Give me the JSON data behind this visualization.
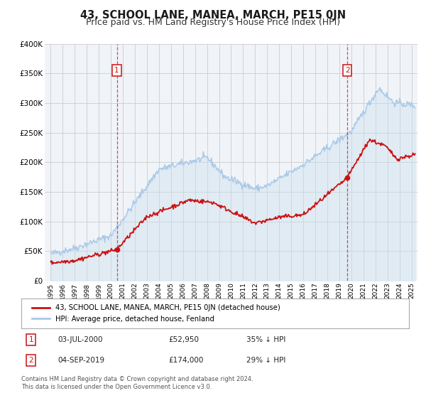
{
  "title": "43, SCHOOL LANE, MANEA, MARCH, PE15 0JN",
  "subtitle": "Price paid vs. HM Land Registry's House Price Index (HPI)",
  "ylim": [
    0,
    400000
  ],
  "yticks": [
    0,
    50000,
    100000,
    150000,
    200000,
    250000,
    300000,
    350000,
    400000
  ],
  "ytick_labels": [
    "£0",
    "£50K",
    "£100K",
    "£150K",
    "£200K",
    "£250K",
    "£300K",
    "£350K",
    "£400K"
  ],
  "xlim_start": 1994.5,
  "xlim_end": 2025.5,
  "background_color": "#ffffff",
  "plot_bg_color": "#f0f4f8",
  "grid_color": "#cccccc",
  "hpi_color": "#a8c8e8",
  "hpi_fill_color": "#c8dff0",
  "price_color": "#cc1111",
  "marker1_date": 2000.5,
  "marker1_price": 52950,
  "marker2_date": 2019.67,
  "marker2_price": 174000,
  "vline_color": "#cc3333",
  "box_color": "#cc1111",
  "legend_entry1": "43, SCHOOL LANE, MANEA, MARCH, PE15 0JN (detached house)",
  "legend_entry2": "HPI: Average price, detached house, Fenland",
  "ann1_date": "03-JUL-2000",
  "ann1_price": "£52,950",
  "ann1_note": "35% ↓ HPI",
  "ann2_date": "04-SEP-2019",
  "ann2_price": "£174,000",
  "ann2_note": "29% ↓ HPI",
  "footer1": "Contains HM Land Registry data © Crown copyright and database right 2024.",
  "footer2": "This data is licensed under the Open Government Licence v3.0.",
  "title_fontsize": 10.5,
  "subtitle_fontsize": 9
}
